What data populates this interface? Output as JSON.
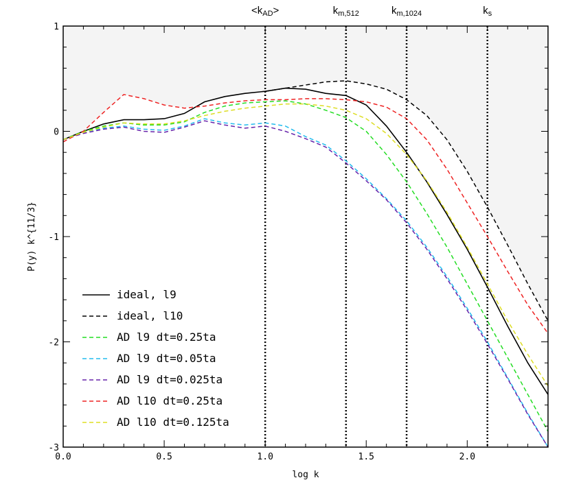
{
  "chart_data": {
    "type": "line",
    "title": "",
    "xlabel": "log k",
    "ylabel": "P(y) k^{11/3}",
    "xlim": [
      0.0,
      2.4
    ],
    "ylim": [
      -3,
      1
    ],
    "grid": false,
    "legend_position": "bottom-left",
    "shaded_region": "upper area is shaded light grey",
    "x_ticks": [
      {
        "value": 0.0,
        "label": "0.0"
      },
      {
        "value": 0.5,
        "label": "0.5"
      },
      {
        "value": 1.0,
        "label": "1.0"
      },
      {
        "value": 1.5,
        "label": "1.5"
      },
      {
        "value": 2.0,
        "label": "2.0"
      }
    ],
    "y_ticks": [
      {
        "value": 1,
        "label": "1"
      },
      {
        "value": 0,
        "label": "0"
      },
      {
        "value": -1,
        "label": "-1"
      },
      {
        "value": -2,
        "label": "-2"
      },
      {
        "value": -3,
        "label": "-3"
      }
    ],
    "vertical_markers": [
      {
        "x": 1.0,
        "main": "<k",
        "sub": "AD",
        "suffix": ">"
      },
      {
        "x": 1.4,
        "main": "k",
        "sub": "m,512",
        "suffix": ""
      },
      {
        "x": 1.7,
        "main": "k",
        "sub": "m,1024",
        "suffix": ""
      },
      {
        "x": 2.1,
        "main": "k",
        "sub": "s",
        "suffix": ""
      }
    ],
    "series": [
      {
        "name": "ideal, l9",
        "color": "#000000",
        "style": "solid",
        "x": [
          0.0,
          0.1,
          0.2,
          0.3,
          0.4,
          0.5,
          0.6,
          0.7,
          0.8,
          0.9,
          1.0,
          1.1,
          1.2,
          1.3,
          1.4,
          1.5,
          1.6,
          1.7,
          1.8,
          1.9,
          2.0,
          2.1,
          2.2,
          2.3,
          2.4
        ],
        "y": [
          -0.08,
          0.0,
          0.07,
          0.11,
          0.11,
          0.12,
          0.17,
          0.28,
          0.33,
          0.36,
          0.38,
          0.41,
          0.4,
          0.36,
          0.34,
          0.25,
          0.05,
          -0.2,
          -0.48,
          -0.79,
          -1.12,
          -1.48,
          -1.85,
          -2.2,
          -2.5
        ]
      },
      {
        "name": "ideal, l10",
        "color": "#000000",
        "style": "dashed",
        "x": [
          1.0,
          1.1,
          1.2,
          1.3,
          1.4,
          1.5,
          1.6,
          1.7,
          1.8,
          1.9,
          2.0,
          2.1,
          2.2,
          2.3,
          2.4
        ],
        "y": [
          0.38,
          0.41,
          0.44,
          0.47,
          0.48,
          0.45,
          0.4,
          0.3,
          0.15,
          -0.08,
          -0.38,
          -0.72,
          -1.08,
          -1.45,
          -1.8
        ]
      },
      {
        "name": "AD l9 dt=0.25ta",
        "color": "#22dd22",
        "style": "dashed",
        "x": [
          0.0,
          0.1,
          0.2,
          0.3,
          0.4,
          0.5,
          0.6,
          0.7,
          0.8,
          0.9,
          1.0,
          1.1,
          1.2,
          1.3,
          1.4,
          1.5,
          1.6,
          1.7,
          1.8,
          1.9,
          2.0,
          2.1,
          2.2,
          2.3,
          2.4
        ],
        "y": [
          -0.08,
          0.0,
          0.05,
          0.08,
          0.06,
          0.06,
          0.09,
          0.18,
          0.24,
          0.27,
          0.28,
          0.29,
          0.26,
          0.2,
          0.13,
          0.0,
          -0.22,
          -0.48,
          -0.78,
          -1.1,
          -1.45,
          -1.8,
          -2.15,
          -2.5,
          -2.85
        ]
      },
      {
        "name": "AD l9  dt=0.05ta",
        "color": "#22bbee",
        "style": "dashed",
        "x": [
          0.0,
          0.1,
          0.2,
          0.3,
          0.4,
          0.5,
          0.6,
          0.7,
          0.8,
          0.9,
          1.0,
          1.1,
          1.2,
          1.3,
          1.4,
          1.5,
          1.6,
          1.7,
          1.8,
          1.9,
          2.0,
          2.1,
          2.2,
          2.3,
          2.4
        ],
        "y": [
          -0.08,
          -0.01,
          0.03,
          0.05,
          0.02,
          0.01,
          0.05,
          0.12,
          0.08,
          0.06,
          0.08,
          0.05,
          -0.05,
          -0.13,
          -0.28,
          -0.45,
          -0.64,
          -0.85,
          -1.1,
          -1.38,
          -1.68,
          -2.0,
          -2.34,
          -2.68,
          -3.0
        ]
      },
      {
        "name": "AD l9  dt=0.025ta",
        "color": "#6622aa",
        "style": "dashed",
        "x": [
          0.0,
          0.1,
          0.2,
          0.3,
          0.4,
          0.5,
          0.6,
          0.7,
          0.8,
          0.9,
          1.0,
          1.1,
          1.2,
          1.3,
          1.4,
          1.5,
          1.6,
          1.7,
          1.8,
          1.9,
          2.0,
          2.1,
          2.2,
          2.3,
          2.4
        ],
        "y": [
          -0.08,
          -0.02,
          0.02,
          0.04,
          0.0,
          -0.01,
          0.04,
          0.1,
          0.06,
          0.03,
          0.05,
          0.0,
          -0.07,
          -0.15,
          -0.3,
          -0.47,
          -0.65,
          -0.87,
          -1.12,
          -1.4,
          -1.7,
          -2.02,
          -2.35,
          -2.69,
          -3.0
        ]
      },
      {
        "name": "AD l10  dt=0.25ta",
        "color": "#ee2222",
        "style": "dashed",
        "x": [
          0.0,
          0.1,
          0.2,
          0.3,
          0.4,
          0.5,
          0.6,
          0.7,
          0.8,
          0.9,
          1.0,
          1.1,
          1.2,
          1.3,
          1.4,
          1.5,
          1.6,
          1.7,
          1.8,
          1.9,
          2.0,
          2.1,
          2.2,
          2.3,
          2.4
        ],
        "y": [
          -0.1,
          0.0,
          0.18,
          0.35,
          0.31,
          0.25,
          0.22,
          0.24,
          0.27,
          0.29,
          0.3,
          0.3,
          0.31,
          0.31,
          0.3,
          0.28,
          0.23,
          0.12,
          -0.08,
          -0.36,
          -0.68,
          -1.0,
          -1.33,
          -1.65,
          -1.92
        ]
      },
      {
        "name": "AD l10  dt=0.125ta",
        "color": "#dddd22",
        "style": "dashed",
        "x": [
          0.0,
          0.1,
          0.2,
          0.3,
          0.4,
          0.5,
          0.6,
          0.7,
          0.8,
          0.9,
          1.0,
          1.1,
          1.2,
          1.3,
          1.4,
          1.5,
          1.6,
          1.7,
          1.8,
          1.9,
          2.0,
          2.1,
          2.2,
          2.3,
          2.4
        ],
        "y": [
          -0.08,
          -0.01,
          0.04,
          0.08,
          0.07,
          0.07,
          0.1,
          0.15,
          0.19,
          0.22,
          0.24,
          0.26,
          0.26,
          0.24,
          0.2,
          0.12,
          -0.02,
          -0.22,
          -0.47,
          -0.77,
          -1.1,
          -1.45,
          -1.8,
          -2.12,
          -2.42
        ]
      }
    ]
  }
}
